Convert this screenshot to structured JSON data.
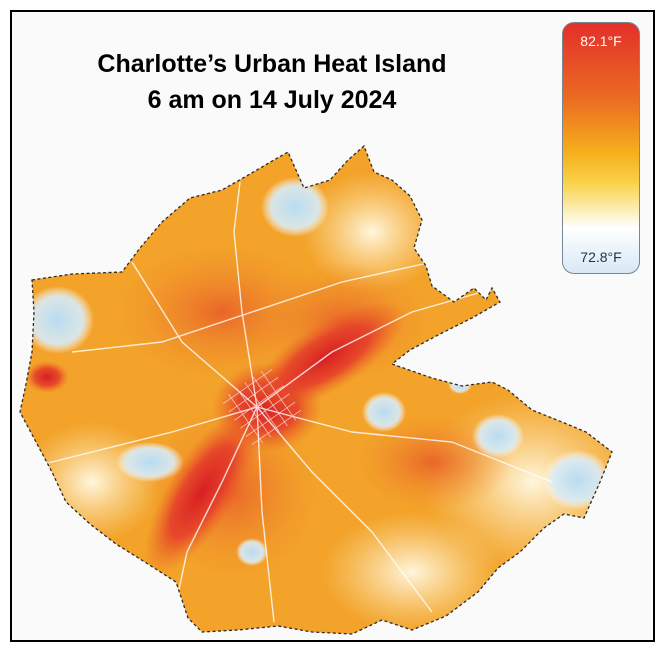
{
  "map": {
    "title_line1": "Charlotte’s Urban Heat Island",
    "title_line2": "6 am on 14 July 2024",
    "legend": {
      "max_label": "82.1°F",
      "min_label": "72.8°F",
      "colors": [
        "#e2302a",
        "#ec6a22",
        "#f5b01c",
        "#ffffff",
        "#d7e9f6"
      ]
    }
  }
}
